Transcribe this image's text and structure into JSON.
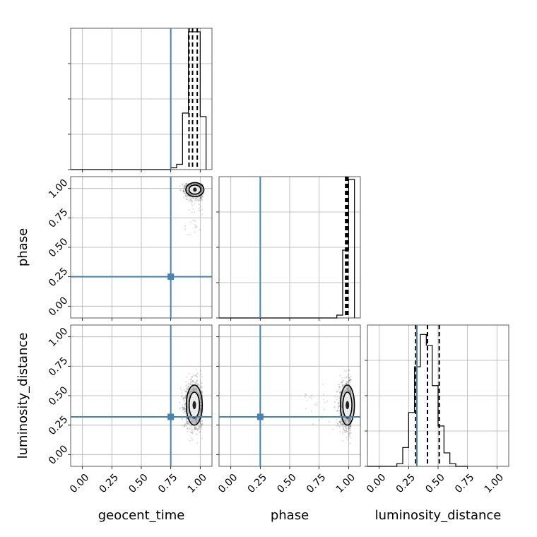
{
  "chart_data": {
    "type": "corner",
    "parameters": [
      "geocent_time",
      "phase",
      "luminosity_distance"
    ],
    "ticks": [
      "0.00",
      "0.25",
      "0.50",
      "0.75",
      "1.00"
    ],
    "tick_values": [
      0.0,
      0.25,
      0.5,
      0.75,
      1.0
    ],
    "axis_range": [
      -0.1,
      1.1
    ],
    "grid": true,
    "truth_color": "#4682b4",
    "truths": {
      "geocent_time": 0.75,
      "phase": 0.25,
      "luminosity_distance": 0.32
    },
    "quantiles": {
      "geocent_time": [
        0.905,
        0.935,
        0.975
      ],
      "phase": [
        0.975,
        0.985,
        0.995
      ],
      "luminosity_distance": [
        0.31,
        0.41,
        0.51
      ]
    },
    "histograms": {
      "geocent_time": {
        "bin_edges": [
          0.75,
          0.8,
          0.85,
          0.9,
          0.95,
          1.0,
          1.05
        ],
        "counts": [
          0.1,
          0.3,
          3.2,
          7.8,
          7.8,
          3.0
        ],
        "ymax": 8.0
      },
      "phase": {
        "bin_edges": [
          0.9,
          0.95,
          1.0,
          1.05
        ],
        "counts": [
          0.2,
          4.8,
          9.8
        ],
        "ymax": 10.0
      },
      "luminosity_distance": {
        "bin_edges": [
          0.15,
          0.2,
          0.25,
          0.3,
          0.35,
          0.4,
          0.45,
          0.5,
          0.55,
          0.6,
          0.65,
          0.7,
          0.75
        ],
        "counts": [
          0.2,
          1.4,
          4.0,
          7.4,
          9.8,
          9.0,
          6.0,
          3.0,
          1.0,
          0.2,
          0.0,
          0.0
        ],
        "ymax": 10.5
      }
    },
    "densities": {
      "phase_vs_geocent_time": {
        "x_center": 0.955,
        "y_center": 0.99,
        "x_sd": 0.045,
        "y_sd": 0.035,
        "y_tail_min": 0.6,
        "n_samples": 900
      },
      "luminosity_distance_vs_geocent_time": {
        "x_center": 0.95,
        "y_center": 0.42,
        "x_sd": 0.04,
        "y_sd": 0.1,
        "n_samples": 1400
      },
      "luminosity_distance_vs_phase": {
        "x_center": 0.99,
        "y_center": 0.42,
        "x_sd": 0.035,
        "y_sd": 0.1,
        "x_tail_min": 0.6,
        "n_samples": 1200
      }
    },
    "titles": {
      "main": "",
      "x": "",
      "y": ""
    }
  }
}
